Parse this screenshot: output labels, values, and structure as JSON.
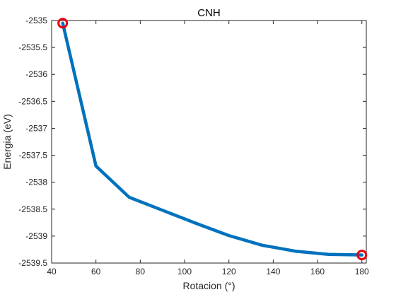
{
  "chart_data": {
    "type": "line",
    "title": "CNH",
    "xlabel": "Rotacion (°)",
    "ylabel": "Energia (eV)",
    "xlim": [
      40,
      182
    ],
    "ylim": [
      -2539.5,
      -2535
    ],
    "xticks": [
      40,
      60,
      80,
      100,
      120,
      140,
      160,
      180
    ],
    "xtick_labels": [
      "40",
      "60",
      "80",
      "100",
      "120",
      "140",
      "160",
      "180"
    ],
    "yticks": [
      -2535,
      -2535.5,
      -2536,
      -2536.5,
      -2537,
      -2537.5,
      -2538,
      -2538.5,
      -2539,
      -2539.5
    ],
    "ytick_labels": [
      "-2535",
      "-2535.5",
      "-2536",
      "-2536.5",
      "-2537",
      "-2537.5",
      "-2538",
      "-2538.5",
      "-2539",
      "-2539.5"
    ],
    "grid": false,
    "series": [
      {
        "x": [
          45,
          60,
          75,
          90,
          105,
          120,
          135,
          150,
          165,
          180
        ],
        "y": [
          -2535.05,
          -2537.7,
          -2538.28,
          -2538.52,
          -2538.76,
          -2538.99,
          -2539.17,
          -2539.28,
          -2539.34,
          -2539.35
        ],
        "color": "#0072BD"
      }
    ],
    "markers": [
      {
        "x": 45,
        "y": -2535.05,
        "color": "#E8000B"
      },
      {
        "x": 180,
        "y": -2539.35,
        "color": "#E8000B"
      }
    ]
  }
}
